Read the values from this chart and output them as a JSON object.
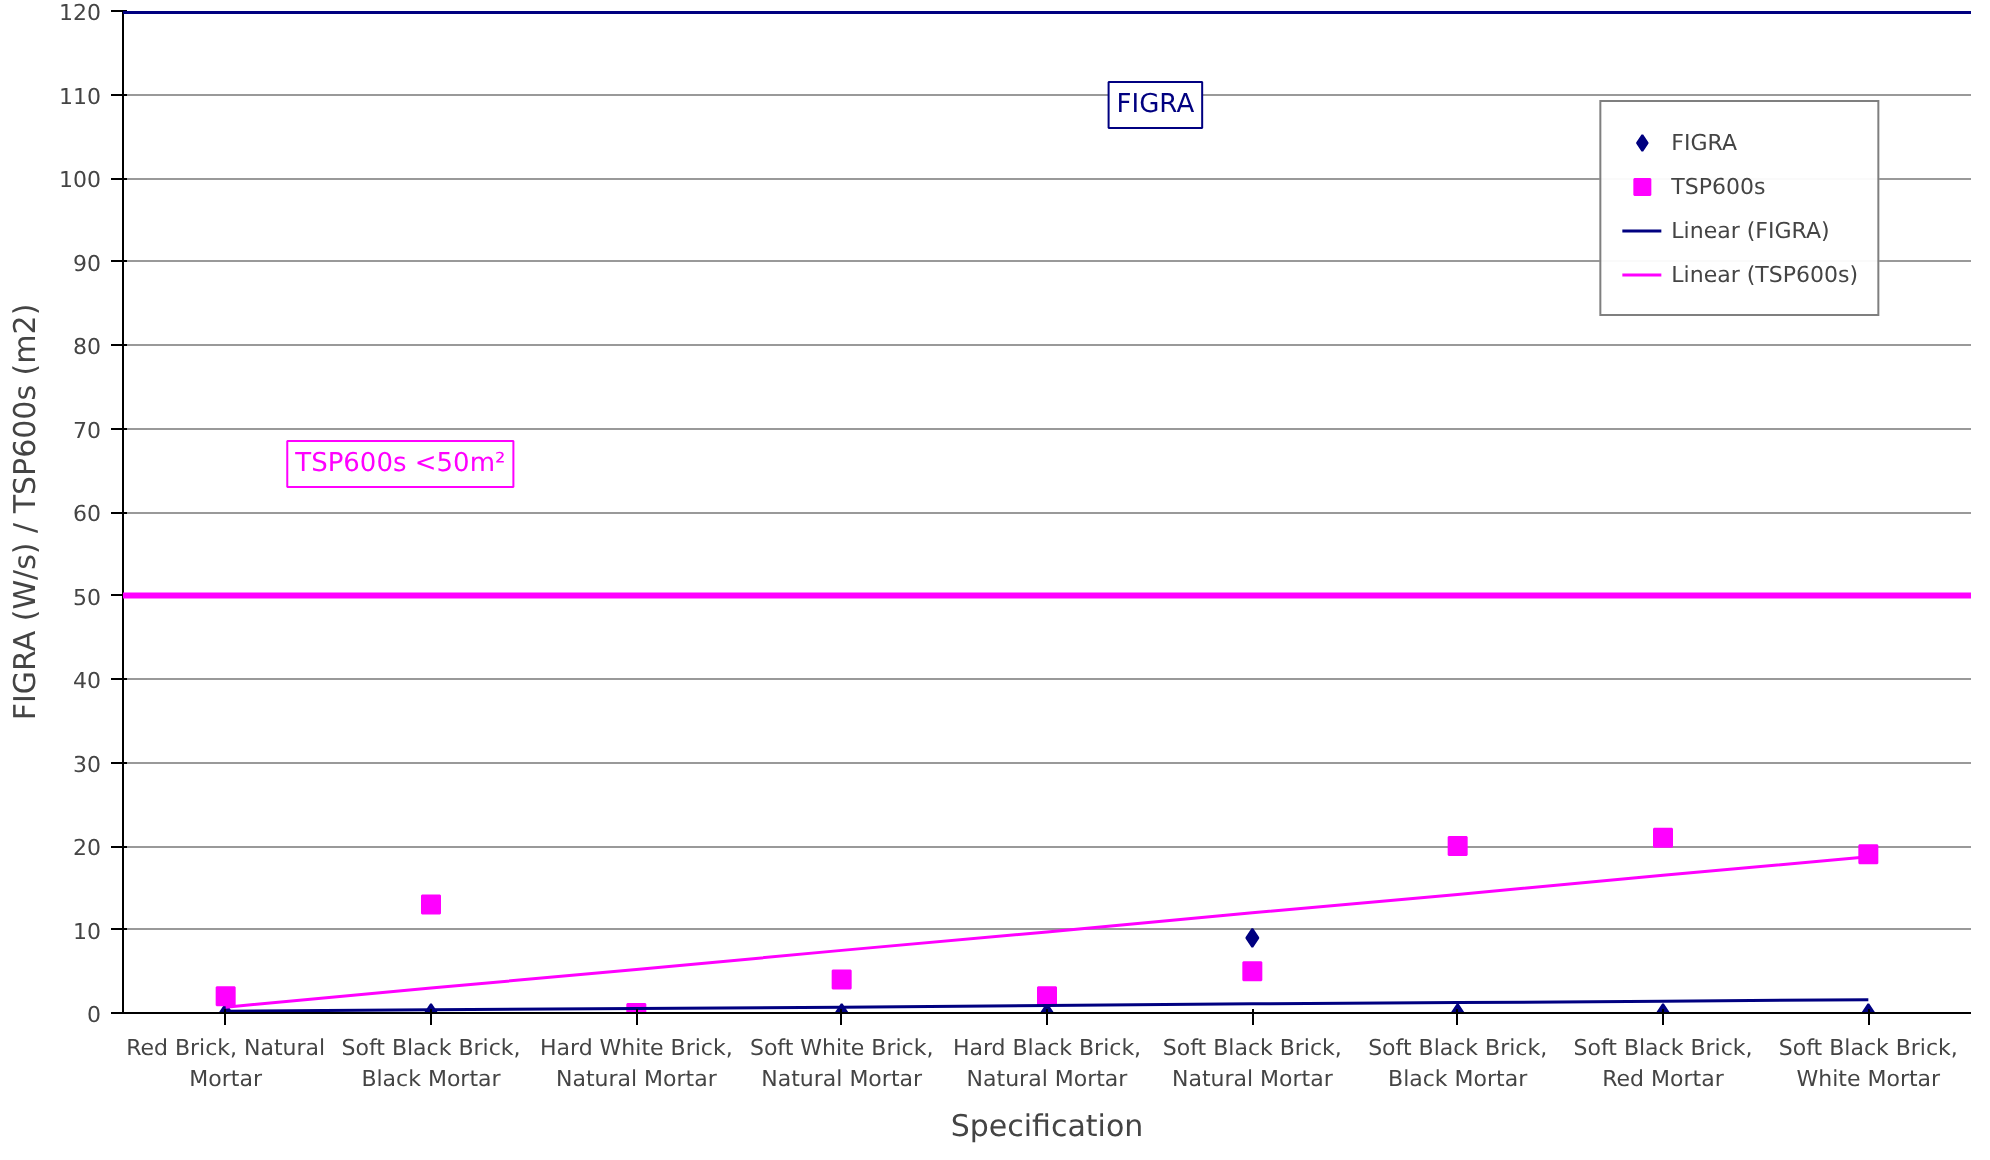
{
  "chart_data": {
    "type": "scatter",
    "xlabel": "Specification",
    "ylabel": "FIGRA (W/s) / TSP600s (m2)",
    "categories": [
      "Red Brick, Natural Mortar",
      "Soft Black Brick, Black Mortar",
      "Hard White Brick, Natural Mortar",
      "Soft White Brick, Natural Mortar",
      "Hard Black Brick, Natural Mortar",
      "Soft Black Brick, Natural Mortar",
      "Soft Black Brick, Black Mortar",
      "Soft Black Brick, Red Mortar",
      "Soft Black Brick, White Mortar"
    ],
    "series": [
      {
        "name": "FIGRA",
        "color": "#000080",
        "marker": "diamond",
        "values": [
          0,
          0,
          null,
          0,
          0,
          9,
          0,
          0,
          0
        ]
      },
      {
        "name": "TSP600s",
        "color": "#ff00ff",
        "marker": "square",
        "values": [
          2,
          13,
          0,
          4,
          2,
          5,
          20,
          21,
          19
        ]
      },
      {
        "name": "Linear (FIGRA)",
        "type": "line",
        "color": "#000080",
        "values": [
          0.2,
          0.4,
          0.55,
          0.7,
          0.9,
          1.1,
          1.25,
          1.4,
          1.6
        ]
      },
      {
        "name": "Linear (TSP600s)",
        "type": "line",
        "color": "#ff00ff",
        "values": [
          0.7,
          3.0,
          5.2,
          7.5,
          9.7,
          12.0,
          14.2,
          16.5,
          18.7
        ]
      }
    ],
    "ylim": [
      0,
      120
    ],
    "yticks": [
      0,
      10,
      20,
      30,
      40,
      50,
      60,
      70,
      80,
      90,
      100,
      110,
      120
    ],
    "ref_lines": [
      {
        "axis": "y",
        "value": 120,
        "label": "FIGRA",
        "color": "#000080"
      },
      {
        "axis": "y",
        "value": 50,
        "label": "TSP600s <50m²",
        "color": "#ff00ff"
      }
    ],
    "grid": "y",
    "legend": "top right"
  }
}
